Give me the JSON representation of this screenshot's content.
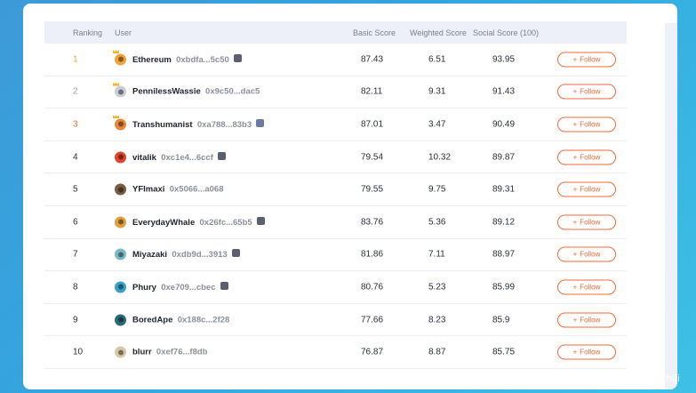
{
  "table": {
    "headers": {
      "ranking": "Ranking",
      "user": "User",
      "basic": "Basic Score",
      "weighted": "Weighted Score",
      "social": "Social Score (100)"
    },
    "follow_label": "Follow",
    "rows": [
      {
        "rank": "1",
        "name": "Ethereum",
        "address": "0xbdfa...5c50",
        "basic": "87.43",
        "weighted": "6.51",
        "social": "93.95",
        "avatar_color": "#f2a23a",
        "crown": true,
        "badge_color": "#5a6070"
      },
      {
        "rank": "2",
        "name": "PennilessWassie",
        "address": "0x9c50...dac5",
        "basic": "82.11",
        "weighted": "9.31",
        "social": "91.43",
        "avatar_color": "#c8cdd6",
        "crown": true,
        "badge_color": ""
      },
      {
        "rank": "3",
        "name": "Transhumanist",
        "address": "0xa788...83b3",
        "basic": "87.01",
        "weighted": "3.47",
        "social": "90.49",
        "avatar_color": "#e8893a",
        "crown": true,
        "badge_color": "#6a7aa0"
      },
      {
        "rank": "4",
        "name": "vitalik",
        "address": "0xc1e4...6ccf",
        "basic": "79.54",
        "weighted": "10.32",
        "social": "89.87",
        "avatar_color": "#e0442e",
        "crown": false,
        "badge_color": "#5a6070"
      },
      {
        "rank": "5",
        "name": "YFImaxi",
        "address": "0x5066...a068",
        "basic": "79.55",
        "weighted": "9.75",
        "social": "89.31",
        "avatar_color": "#7a5a40",
        "crown": false,
        "badge_color": ""
      },
      {
        "rank": "6",
        "name": "EverydayWhale",
        "address": "0x26fc...65b5",
        "basic": "83.76",
        "weighted": "5.36",
        "social": "89.12",
        "avatar_color": "#e0a040",
        "crown": false,
        "badge_color": "#5a6070"
      },
      {
        "rank": "7",
        "name": "Miyazaki",
        "address": "0xdb9d...3913",
        "basic": "81.86",
        "weighted": "7.11",
        "social": "88.97",
        "avatar_color": "#7ab8c8",
        "crown": false,
        "badge_color": "#5a6070"
      },
      {
        "rank": "8",
        "name": "Phury",
        "address": "0xe709...cbec",
        "basic": "80.76",
        "weighted": "5.23",
        "social": "85.99",
        "avatar_color": "#38a0c8",
        "crown": false,
        "badge_color": "#5a6070"
      },
      {
        "rank": "9",
        "name": "BoredApe",
        "address": "0x188c...2f28",
        "basic": "77.66",
        "weighted": "8.23",
        "social": "85.9",
        "avatar_color": "#2a6a7a",
        "crown": false,
        "badge_color": ""
      },
      {
        "rank": "10",
        "name": "blurr",
        "address": "0xef76...f8db",
        "basic": "76.87",
        "weighted": "8.87",
        "social": "85.75",
        "avatar_color": "#d8c8a8",
        "crown": false,
        "badge_color": ""
      }
    ]
  },
  "watermark": "CSDN @linzhiji",
  "colors": {
    "accent": "#f06a3a",
    "rank_gold": "#f0a020",
    "rank_silver": "#9aa0ab",
    "rank_bronze": "#f06a2a"
  }
}
